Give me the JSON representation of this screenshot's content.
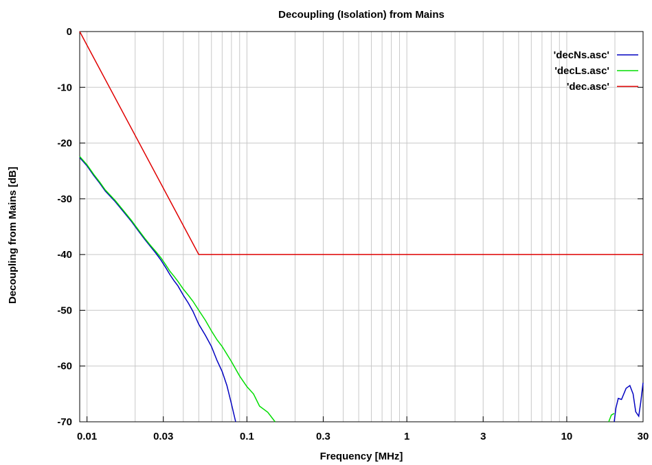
{
  "chart_data": {
    "type": "line",
    "title": "Decoupling (Isolation) from Mains",
    "xlabel": "Frequency [MHz]",
    "ylabel": "Decoupling from Mains [dB]",
    "x_scale": "log",
    "xlim": [
      0.009,
      30
    ],
    "ylim": [
      -70,
      0
    ],
    "x_ticks": [
      {
        "value": 0.01,
        "label": "0.01"
      },
      {
        "value": 0.03,
        "label": "0.03"
      },
      {
        "value": 0.1,
        "label": "0.1"
      },
      {
        "value": 0.3,
        "label": "0.3"
      },
      {
        "value": 1,
        "label": "1"
      },
      {
        "value": 3,
        "label": "3"
      },
      {
        "value": 10,
        "label": "10"
      },
      {
        "value": 30,
        "label": "30"
      }
    ],
    "y_ticks": [
      {
        "value": 0,
        "label": "0"
      },
      {
        "value": -10,
        "label": "-10"
      },
      {
        "value": -20,
        "label": "-20"
      },
      {
        "value": -30,
        "label": "-30"
      },
      {
        "value": -40,
        "label": "-40"
      },
      {
        "value": -50,
        "label": "-50"
      },
      {
        "value": -60,
        "label": "-60"
      },
      {
        "value": -70,
        "label": "-70"
      }
    ],
    "grid": true,
    "legend_position": "top-right",
    "series": [
      {
        "name": "'decNs.asc'",
        "color": "#0000c0",
        "points": [
          [
            0.009,
            -22.6
          ],
          [
            0.01,
            -24.1
          ],
          [
            0.011,
            -25.8
          ],
          [
            0.012,
            -27.2
          ],
          [
            0.013,
            -28.6
          ],
          [
            0.015,
            -30.5
          ],
          [
            0.017,
            -32.4
          ],
          [
            0.019,
            -34.1
          ],
          [
            0.021,
            -35.8
          ],
          [
            0.023,
            -37.3
          ],
          [
            0.025,
            -38.6
          ],
          [
            0.027,
            -39.8
          ],
          [
            0.029,
            -41.0
          ],
          [
            0.031,
            -42.3
          ],
          [
            0.033,
            -43.6
          ],
          [
            0.035,
            -44.7
          ],
          [
            0.037,
            -45.6
          ],
          [
            0.04,
            -47.3
          ],
          [
            0.043,
            -48.7
          ],
          [
            0.046,
            -50.2
          ],
          [
            0.05,
            -52.5
          ],
          [
            0.055,
            -54.5
          ],
          [
            0.06,
            -56.5
          ],
          [
            0.065,
            -59.0
          ],
          [
            0.07,
            -61.0
          ],
          [
            0.075,
            -63.5
          ],
          [
            0.08,
            -66.8
          ],
          [
            0.085,
            -70.0
          ]
        ]
      },
      {
        "name": "'decLs.asc'",
        "color": "#00dd00",
        "points": [
          [
            0.009,
            -22.4
          ],
          [
            0.01,
            -23.9
          ],
          [
            0.011,
            -25.6
          ],
          [
            0.012,
            -27.0
          ],
          [
            0.013,
            -28.4
          ],
          [
            0.015,
            -30.3
          ],
          [
            0.017,
            -32.2
          ],
          [
            0.019,
            -33.9
          ],
          [
            0.021,
            -35.6
          ],
          [
            0.023,
            -37.1
          ],
          [
            0.025,
            -38.4
          ],
          [
            0.027,
            -39.5
          ],
          [
            0.029,
            -40.6
          ],
          [
            0.031,
            -41.8
          ],
          [
            0.033,
            -43.0
          ],
          [
            0.035,
            -43.9
          ],
          [
            0.037,
            -44.8
          ],
          [
            0.04,
            -46.2
          ],
          [
            0.043,
            -47.3
          ],
          [
            0.046,
            -48.4
          ],
          [
            0.05,
            -50.0
          ],
          [
            0.055,
            -51.8
          ],
          [
            0.06,
            -53.7
          ],
          [
            0.065,
            -55.3
          ],
          [
            0.07,
            -56.5
          ],
          [
            0.08,
            -59.2
          ],
          [
            0.09,
            -61.8
          ],
          [
            0.1,
            -63.7
          ],
          [
            0.11,
            -65.0
          ],
          [
            0.12,
            -67.2
          ],
          [
            0.135,
            -68.3
          ],
          [
            0.15,
            -70.0
          ]
        ]
      },
      {
        "name": "'dec.asc'",
        "color": "#e00000",
        "points": [
          [
            0.009,
            0
          ],
          [
            0.05,
            -40
          ],
          [
            30,
            -40
          ]
        ]
      }
    ],
    "extra_segments": [
      {
        "series": "'decNs.asc'",
        "color": "#0000c0",
        "points": [
          [
            19.8,
            -70.0
          ],
          [
            20.3,
            -67.5
          ],
          [
            21.0,
            -65.8
          ],
          [
            22.0,
            -66.0
          ],
          [
            23.5,
            -64.0
          ],
          [
            24.8,
            -63.5
          ],
          [
            26.0,
            -65.0
          ],
          [
            27.0,
            -68.2
          ],
          [
            28.2,
            -69.0
          ],
          [
            29.0,
            -66.5
          ],
          [
            30,
            -63.0
          ]
        ]
      },
      {
        "series": "'decLs.asc'",
        "color": "#00dd00",
        "points": [
          [
            18.3,
            -70.0
          ],
          [
            19.0,
            -68.8
          ],
          [
            19.8,
            -68.5
          ]
        ]
      }
    ]
  }
}
